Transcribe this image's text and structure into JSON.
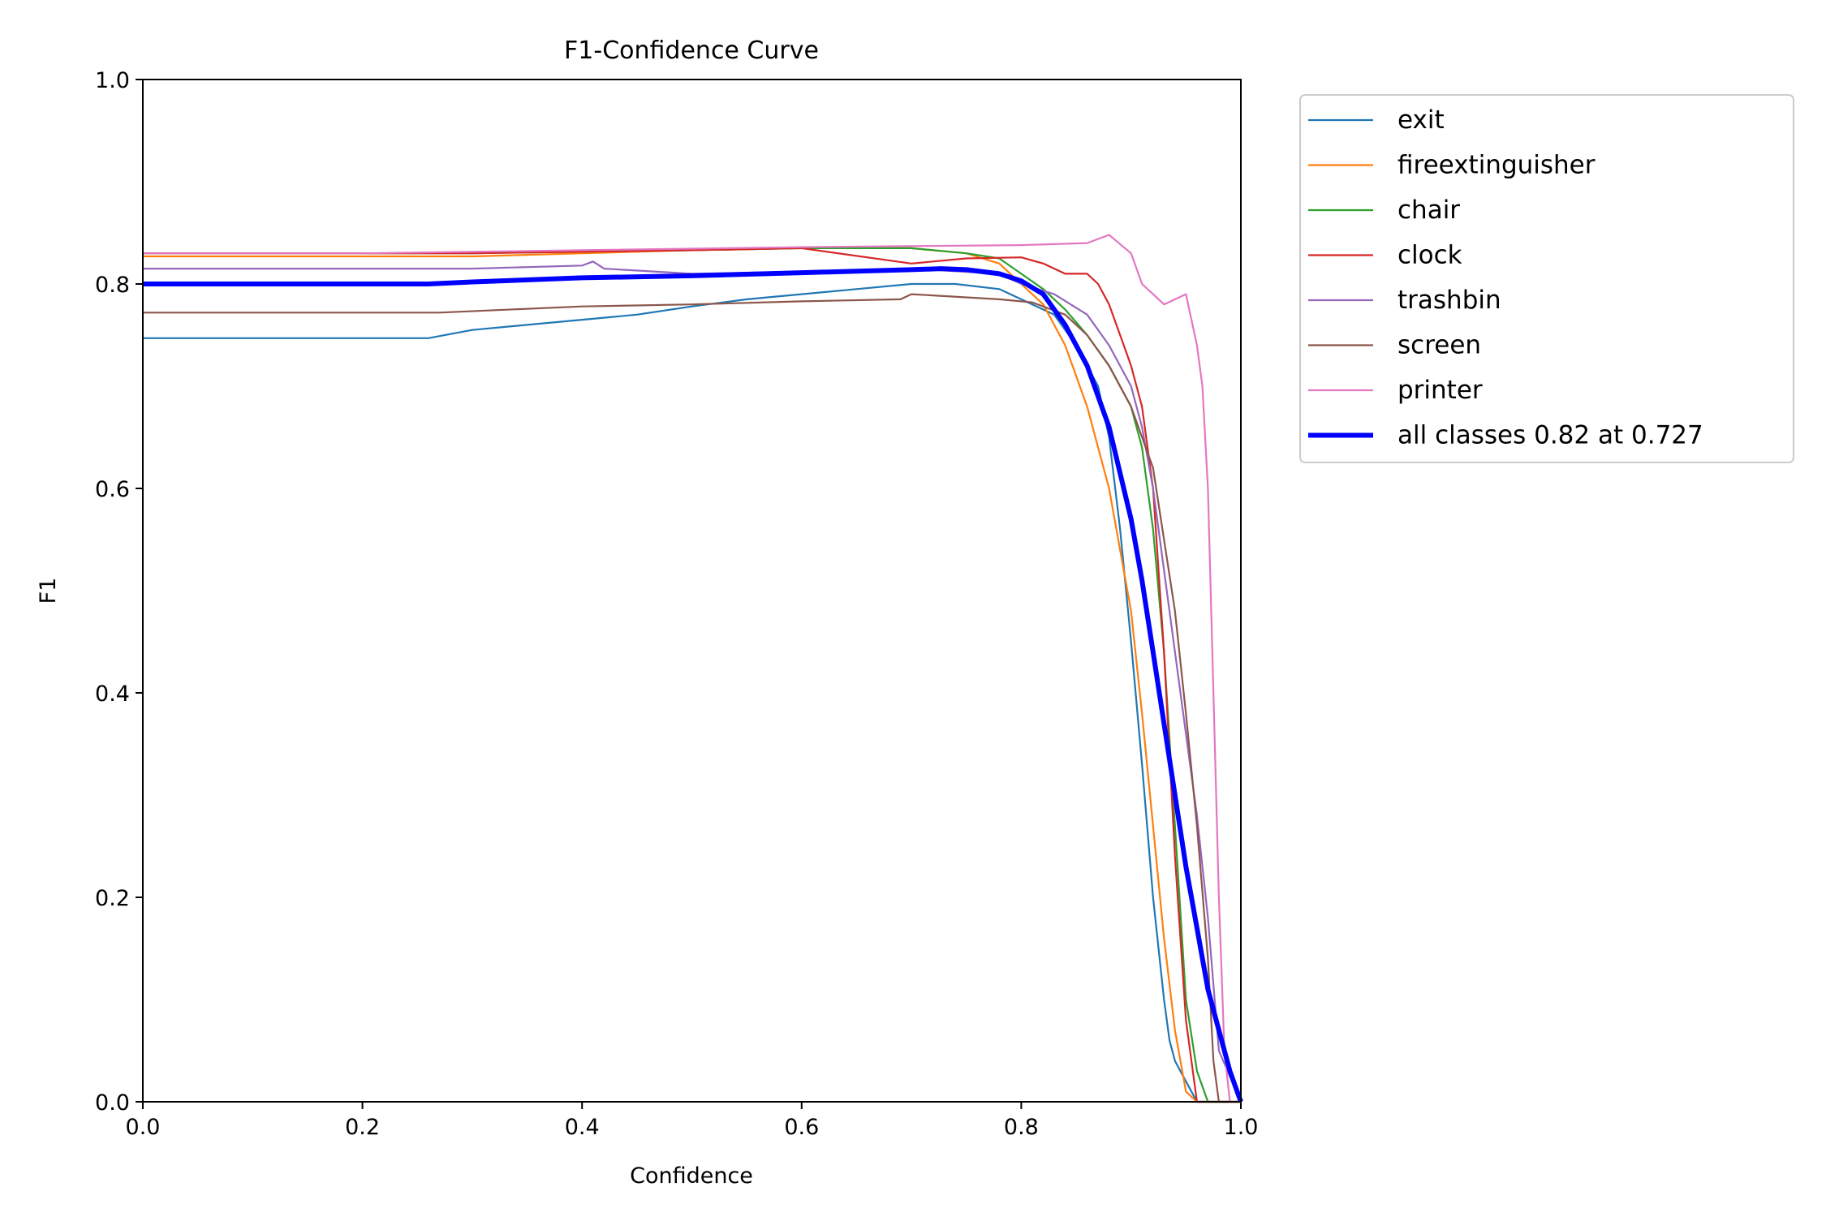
{
  "chart_data": {
    "type": "line",
    "title": "F1-Confidence Curve",
    "xlabel": "Confidence",
    "ylabel": "F1",
    "xlim": [
      0,
      1
    ],
    "ylim": [
      0,
      1
    ],
    "xticks": [
      "0.0",
      "0.2",
      "0.4",
      "0.6",
      "0.8",
      "1.0"
    ],
    "yticks": [
      "0.0",
      "0.2",
      "0.4",
      "0.6",
      "0.8",
      "1.0"
    ],
    "grid": false,
    "legend_position": "outside-top-right",
    "series": [
      {
        "name": "exit",
        "color": "#1f77b4",
        "x": [
          0,
          0.26,
          0.3,
          0.35,
          0.4,
          0.45,
          0.5,
          0.55,
          0.6,
          0.65,
          0.7,
          0.74,
          0.78,
          0.8,
          0.83,
          0.85,
          0.87,
          0.88,
          0.89,
          0.9,
          0.91,
          0.92,
          0.93,
          0.935,
          0.94,
          0.95,
          0.96,
          1.0
        ],
        "y": [
          0.747,
          0.747,
          0.755,
          0.76,
          0.765,
          0.77,
          0.778,
          0.785,
          0.79,
          0.795,
          0.8,
          0.8,
          0.795,
          0.785,
          0.77,
          0.74,
          0.7,
          0.65,
          0.56,
          0.45,
          0.33,
          0.2,
          0.1,
          0.06,
          0.04,
          0.02,
          0.0,
          0.0
        ]
      },
      {
        "name": "fireextinguisher",
        "color": "#ff7f0e",
        "x": [
          0,
          0.3,
          0.5,
          0.6,
          0.7,
          0.75,
          0.78,
          0.8,
          0.82,
          0.84,
          0.86,
          0.88,
          0.9,
          0.91,
          0.92,
          0.93,
          0.94,
          0.95,
          0.96,
          1.0
        ],
        "y": [
          0.827,
          0.827,
          0.833,
          0.835,
          0.835,
          0.83,
          0.82,
          0.8,
          0.78,
          0.74,
          0.68,
          0.6,
          0.48,
          0.38,
          0.27,
          0.16,
          0.07,
          0.01,
          0.0,
          0.0
        ]
      },
      {
        "name": "chair",
        "color": "#2ca02c",
        "x": [
          0,
          0.3,
          0.5,
          0.6,
          0.7,
          0.75,
          0.78,
          0.8,
          0.82,
          0.84,
          0.86,
          0.88,
          0.9,
          0.91,
          0.92,
          0.93,
          0.94,
          0.95,
          0.96,
          0.97,
          1.0
        ],
        "y": [
          0.83,
          0.83,
          0.833,
          0.835,
          0.835,
          0.83,
          0.825,
          0.81,
          0.795,
          0.775,
          0.75,
          0.72,
          0.68,
          0.64,
          0.56,
          0.44,
          0.27,
          0.1,
          0.03,
          0.0,
          0.0
        ]
      },
      {
        "name": "clock",
        "color": "#d62728",
        "x": [
          0,
          0.3,
          0.5,
          0.6,
          0.7,
          0.75,
          0.8,
          0.82,
          0.84,
          0.86,
          0.87,
          0.88,
          0.89,
          0.9,
          0.91,
          0.92,
          0.93,
          0.94,
          0.95,
          0.96,
          1.0
        ],
        "y": [
          0.83,
          0.83,
          0.833,
          0.835,
          0.82,
          0.825,
          0.826,
          0.82,
          0.81,
          0.81,
          0.8,
          0.78,
          0.75,
          0.72,
          0.68,
          0.6,
          0.44,
          0.24,
          0.08,
          0.0,
          0.0
        ]
      },
      {
        "name": "trashbin",
        "color": "#9467bd",
        "x": [
          0,
          0.3,
          0.4,
          0.41,
          0.42,
          0.5,
          0.6,
          0.7,
          0.78,
          0.8,
          0.83,
          0.86,
          0.88,
          0.9,
          0.91,
          0.92,
          0.93,
          0.94,
          0.95,
          0.96,
          0.97,
          0.98,
          1.0
        ],
        "y": [
          0.815,
          0.815,
          0.818,
          0.822,
          0.815,
          0.81,
          0.812,
          0.815,
          0.81,
          0.8,
          0.79,
          0.77,
          0.74,
          0.7,
          0.66,
          0.6,
          0.52,
          0.44,
          0.36,
          0.28,
          0.18,
          0.05,
          0.0
        ]
      },
      {
        "name": "screen",
        "color": "#8c564b",
        "x": [
          0,
          0.27,
          0.4,
          0.5,
          0.6,
          0.69,
          0.7,
          0.78,
          0.81,
          0.84,
          0.86,
          0.88,
          0.9,
          0.92,
          0.93,
          0.94,
          0.95,
          0.96,
          0.97,
          0.975,
          0.98,
          1.0
        ],
        "y": [
          0.772,
          0.772,
          0.778,
          0.78,
          0.783,
          0.785,
          0.79,
          0.785,
          0.782,
          0.77,
          0.75,
          0.72,
          0.68,
          0.62,
          0.55,
          0.48,
          0.38,
          0.27,
          0.14,
          0.04,
          0.0,
          0.0
        ]
      },
      {
        "name": "printer",
        "color": "#e377c2",
        "x": [
          0,
          0.2,
          0.4,
          0.6,
          0.8,
          0.86,
          0.88,
          0.9,
          0.91,
          0.92,
          0.93,
          0.95,
          0.96,
          0.965,
          0.97,
          0.975,
          0.98,
          0.985,
          0.99,
          1.0
        ],
        "y": [
          0.83,
          0.83,
          0.833,
          0.836,
          0.838,
          0.84,
          0.848,
          0.83,
          0.8,
          0.79,
          0.78,
          0.79,
          0.74,
          0.7,
          0.6,
          0.4,
          0.2,
          0.05,
          0.0,
          0.0
        ]
      },
      {
        "name": "all classes 0.82 at 0.727",
        "color": "#0000ff",
        "linewidth": 6,
        "x": [
          0,
          0.26,
          0.3,
          0.4,
          0.5,
          0.6,
          0.7,
          0.727,
          0.75,
          0.78,
          0.8,
          0.82,
          0.84,
          0.86,
          0.88,
          0.9,
          0.91,
          0.92,
          0.93,
          0.94,
          0.95,
          0.96,
          0.97,
          0.98,
          0.99,
          1.0
        ],
        "y": [
          0.8,
          0.8,
          0.802,
          0.806,
          0.808,
          0.811,
          0.814,
          0.815,
          0.814,
          0.81,
          0.803,
          0.79,
          0.76,
          0.72,
          0.66,
          0.57,
          0.51,
          0.44,
          0.37,
          0.3,
          0.23,
          0.17,
          0.11,
          0.07,
          0.03,
          0.0
        ]
      }
    ]
  }
}
